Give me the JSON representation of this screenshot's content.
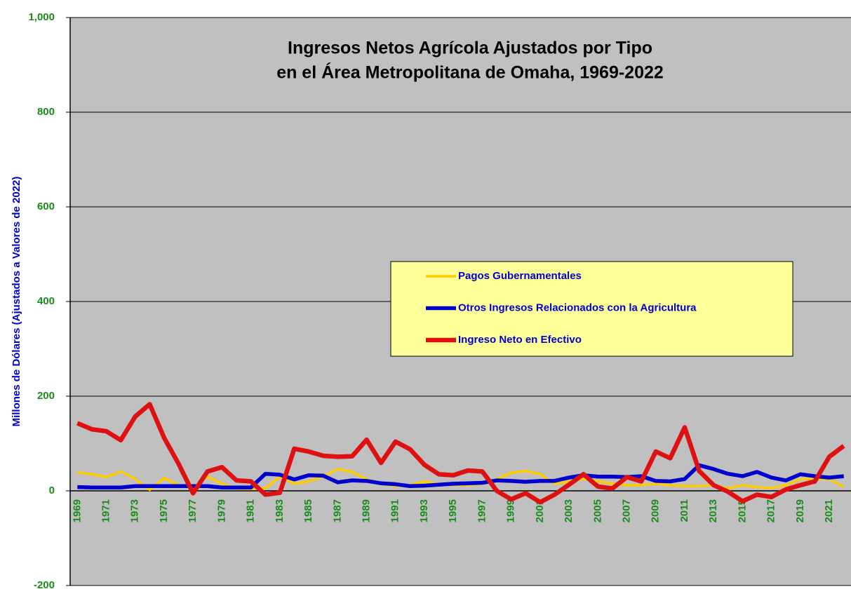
{
  "chart_data": {
    "type": "line",
    "title": [
      "Ingresos Netos Agrícola Ajustados por Tipo",
      "en el Área Metropolitana de Omaha, 1969-2022"
    ],
    "ylabel": "Millones de Dólares (Ajustados a Valores de 2022)",
    "categories": [
      "1969",
      null,
      "1971",
      null,
      "1973",
      null,
      "1975",
      null,
      "1977",
      null,
      "1979",
      null,
      "1981",
      null,
      "1983",
      null,
      "1985",
      null,
      "1987",
      null,
      "1989",
      null,
      "1991",
      null,
      "1993",
      null,
      "1995",
      null,
      "1997",
      null,
      "1999",
      null,
      "2001",
      null,
      "2003",
      null,
      "2005",
      null,
      "2007",
      null,
      "2009",
      null,
      "2011",
      null,
      "2013",
      null,
      "2015",
      null,
      "2017",
      null,
      "2019",
      null,
      "2021",
      null
    ],
    "series": [
      {
        "name": "Pagos Gubernamentales",
        "color": "#ffcc00",
        "values": [
          39,
          35,
          29,
          41,
          25,
          2,
          27,
          12,
          8,
          30,
          15,
          5,
          4,
          5,
          30,
          15,
          20,
          30,
          46,
          40,
          25,
          15,
          10,
          12,
          20,
          14,
          12,
          12,
          15,
          25,
          38,
          42,
          35,
          15,
          20,
          25,
          20,
          15,
          12,
          12,
          15,
          12,
          10,
          10,
          12,
          5,
          12,
          8,
          6,
          12,
          25,
          25,
          25,
          8
        ]
      },
      {
        "name": "Otros Ingresos Relacionados con la Agricultura",
        "color": "#0000cc",
        "values": [
          8,
          7,
          7,
          7,
          10,
          10,
          10,
          10,
          10,
          10,
          7,
          7,
          7,
          36,
          34,
          24,
          33,
          32,
          18,
          22,
          21,
          16,
          14,
          10,
          11,
          13,
          15,
          16,
          17,
          22,
          21,
          19,
          21,
          21,
          28,
          33,
          30,
          30,
          29,
          31,
          21,
          20,
          25,
          54,
          46,
          36,
          31,
          40,
          28,
          22,
          35,
          31,
          28,
          31
        ]
      },
      {
        "name": "Ingreso Neto en Efectivo",
        "color": "#dd1111",
        "values": [
          143,
          130,
          126,
          107,
          157,
          183,
          112,
          57,
          -5,
          41,
          50,
          22,
          20,
          -8,
          -4,
          89,
          83,
          74,
          72,
          73,
          108,
          59,
          104,
          88,
          55,
          35,
          33,
          43,
          41,
          0,
          -18,
          -5,
          -24,
          -8,
          13,
          35,
          9,
          5,
          29,
          20,
          83,
          69,
          134,
          42,
          12,
          -2,
          -22,
          -8,
          -13,
          3,
          12,
          20,
          72,
          95
        ]
      }
    ],
    "ylim": [
      -200,
      1000
    ],
    "yticks": [
      -200,
      0,
      200,
      400,
      600,
      800,
      {
        "value": 1000,
        "label": "1,000"
      }
    ],
    "grid": true
  }
}
